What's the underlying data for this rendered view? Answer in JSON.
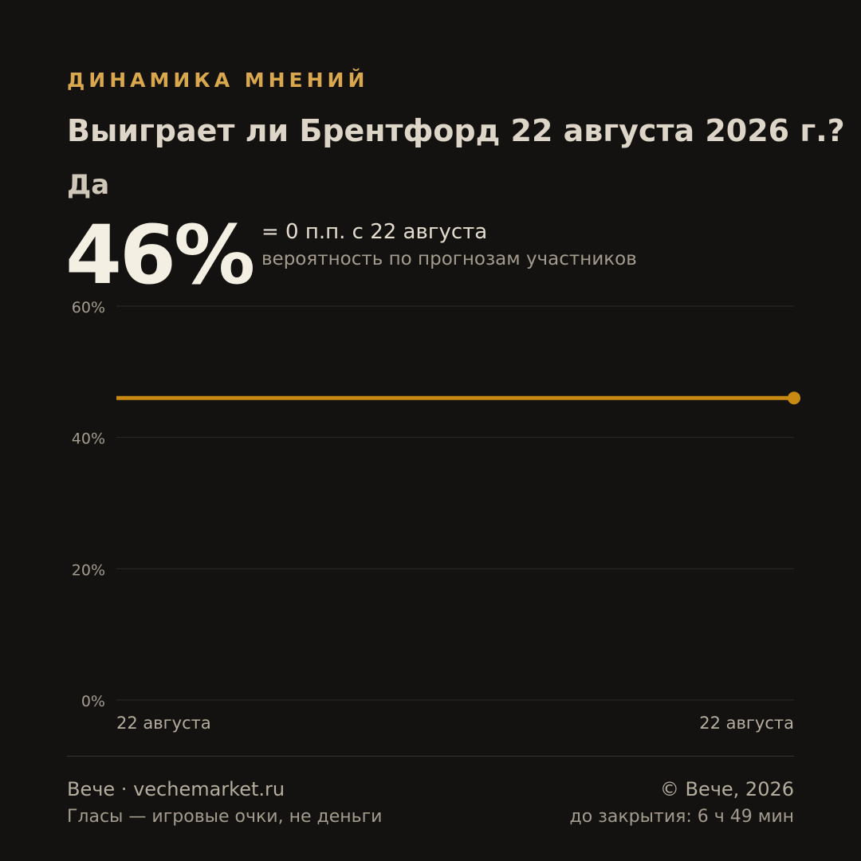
{
  "header": {
    "kicker": "ДИНАМИКА МНЕНИЙ",
    "question": "Выиграет ли Брентфорд 22 августа 2026 г.?",
    "outcome": "Да",
    "probability": "46%",
    "delta": "= 0 п.п. с 22 августа",
    "caption": "вероятность по прогнозам участников"
  },
  "chart_data": {
    "type": "line",
    "ylim": [
      0,
      60
    ],
    "y_ticks": [
      {
        "value": 60,
        "label": "60%"
      },
      {
        "value": 40,
        "label": "40%"
      },
      {
        "value": 20,
        "label": "20%"
      },
      {
        "value": 0,
        "label": "0%"
      }
    ],
    "x_labels": [
      "22 августа",
      "22 августа"
    ],
    "grid": true,
    "series": [
      {
        "color": "#c88a12",
        "values": [
          46,
          46
        ]
      }
    ]
  },
  "footer": {
    "brand": "Вече · vechemarket.ru",
    "note": "Гласы — игровые очки, не деньги",
    "copyright": "© Вече, 2026",
    "closing": "до закрытия: 6 ч 49 мин"
  },
  "colors": {
    "background": "#141210",
    "accent": "#d9a84e",
    "line": "#c88a12",
    "grid": "#2c2924"
  }
}
